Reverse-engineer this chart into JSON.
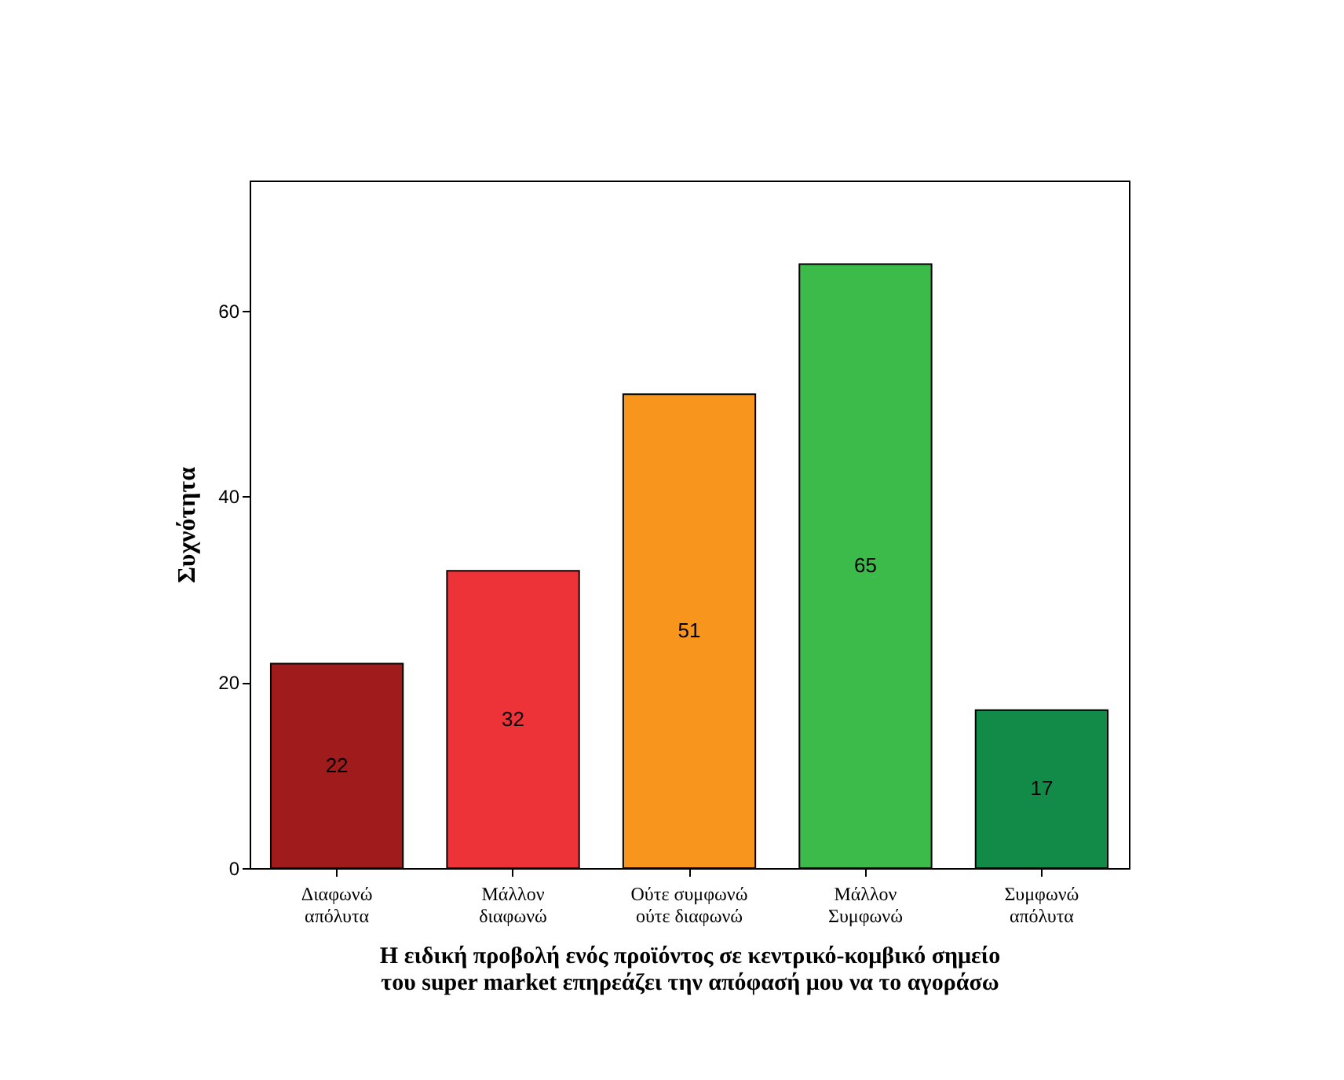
{
  "chart_data": {
    "type": "bar",
    "xlabel": "Η ειδική προβολή ενός προϊόντος σε κεντρικό-κομβικό σημείο\nτου super market επηρεάζει την απόφασή μου να το αγοράσω",
    "ylabel": "Συχνότητα",
    "categories": [
      "Διαφωνώ\nαπόλυτα",
      "Μάλλον\nδιαφωνώ",
      "Ούτε συμφωνώ\nούτε διαφωνώ",
      "Μάλλον\nΣυμφωνώ",
      "Συμφωνώ\nαπόλυτα"
    ],
    "values": [
      22,
      32,
      51,
      65,
      17
    ],
    "colors": [
      "#a01c1c",
      "#ee3338",
      "#f7951d",
      "#3dbb4a",
      "#128a48"
    ],
    "ylim": [
      0,
      74
    ],
    "yticks": [
      0,
      20,
      40,
      60
    ],
    "grid": false,
    "data_labels": true
  }
}
